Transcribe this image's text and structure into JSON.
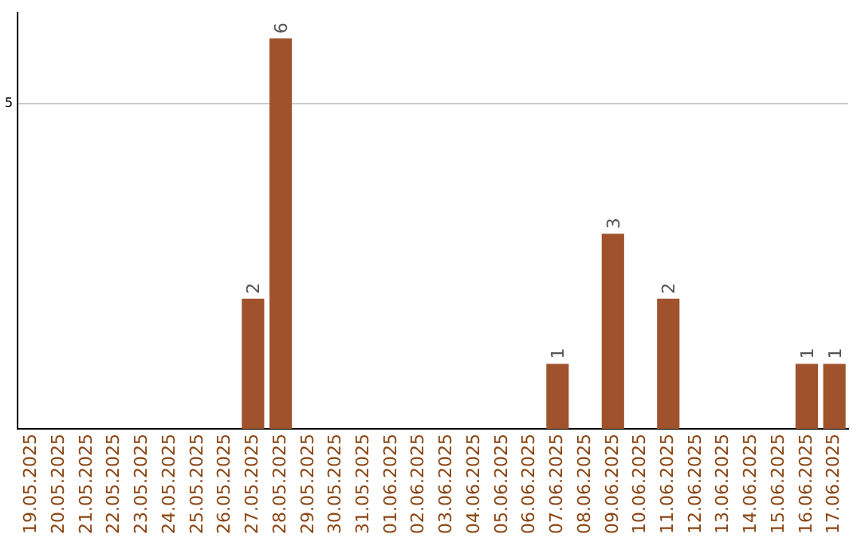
{
  "chart_data": {
    "type": "bar",
    "categories": [
      "19.05.2025",
      "20.05.2025",
      "21.05.2025",
      "22.05.2025",
      "23.05.2025",
      "24.05.2025",
      "25.05.2025",
      "26.05.2025",
      "27.05.2025",
      "28.05.2025",
      "29.05.2025",
      "30.05.2025",
      "31.05.2025",
      "01.06.2025",
      "02.06.2025",
      "03.06.2025",
      "04.06.2025",
      "05.06.2025",
      "06.06.2025",
      "07.06.2025",
      "08.06.2025",
      "09.06.2025",
      "10.06.2025",
      "11.06.2025",
      "12.06.2025",
      "13.06.2025",
      "14.06.2025",
      "15.06.2025",
      "16.06.2025",
      "17.06.2025"
    ],
    "values": [
      0,
      0,
      0,
      0,
      0,
      0,
      0,
      0,
      2,
      6,
      0,
      0,
      0,
      0,
      0,
      0,
      0,
      0,
      0,
      1,
      0,
      3,
      0,
      2,
      0,
      0,
      0,
      0,
      1,
      1
    ],
    "value_labels": [
      null,
      null,
      null,
      null,
      null,
      null,
      null,
      null,
      "2",
      "6",
      null,
      null,
      null,
      null,
      null,
      null,
      null,
      null,
      null,
      "1",
      null,
      "3",
      null,
      "2",
      null,
      null,
      null,
      null,
      "1",
      "1"
    ],
    "color": "#a0522d",
    "ylim": [
      0,
      6.4
    ],
    "yticks": [
      5
    ],
    "grid": "y",
    "legend": false
  }
}
